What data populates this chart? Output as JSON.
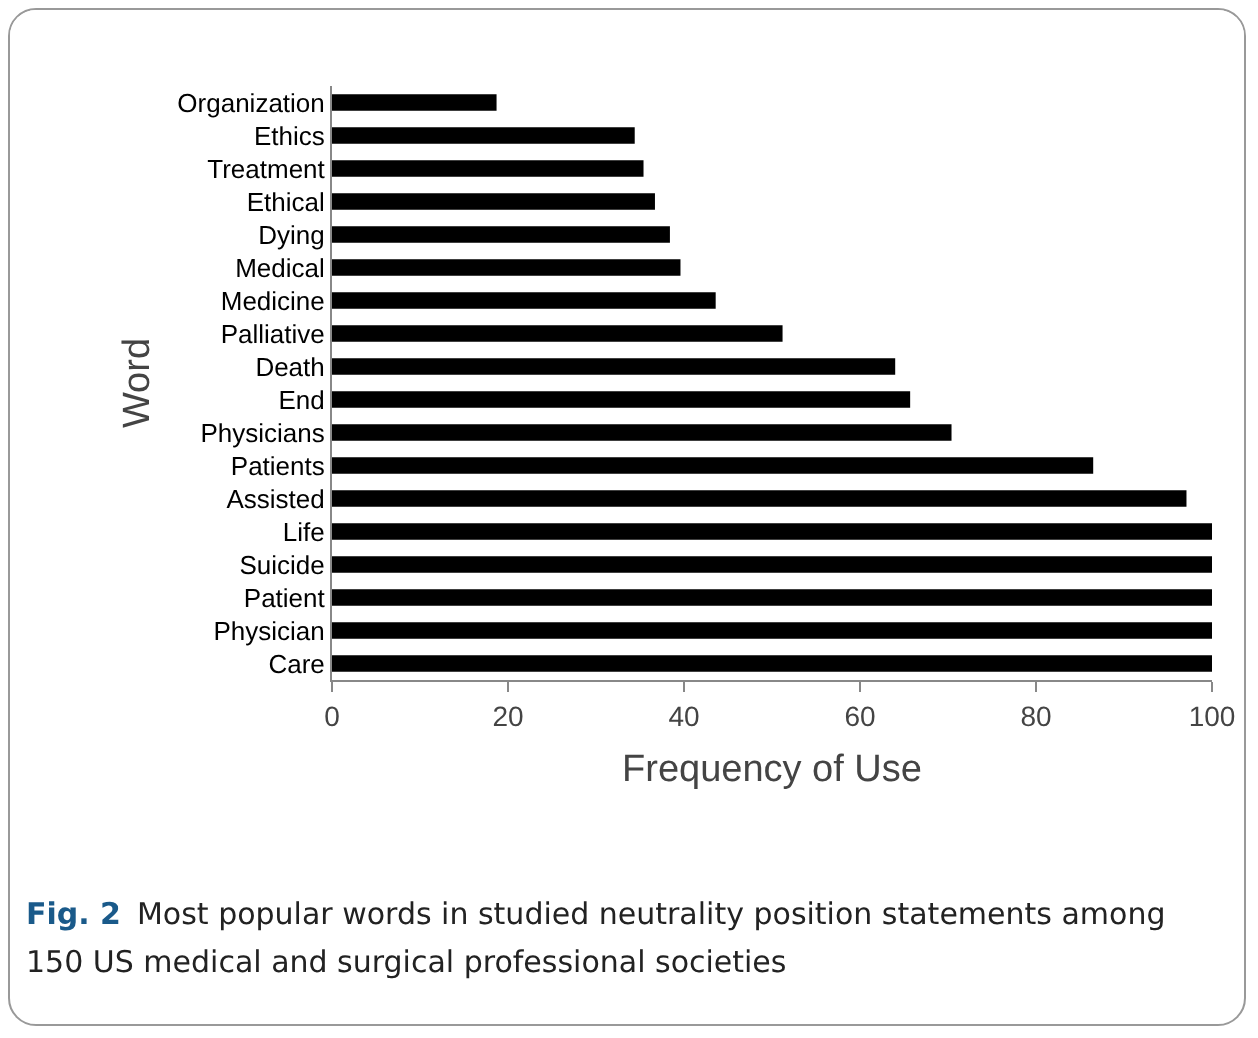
{
  "chart_data": {
    "type": "bar",
    "orientation": "horizontal",
    "categories": [
      "Organization",
      "Ethics",
      "Treatment",
      "Ethical",
      "Dying",
      "Medical",
      "Medicine",
      "Palliative",
      "Death",
      "End",
      "Physicians",
      "Patients",
      "Assisted",
      "Life",
      "Suicide",
      "Patient",
      "Physician",
      "Care"
    ],
    "values": [
      18.7,
      34.4,
      35.4,
      36.7,
      38.4,
      39.6,
      43.6,
      51.2,
      64.0,
      65.7,
      70.4,
      86.5,
      97.1,
      100,
      100,
      100,
      100,
      100
    ],
    "color": "#000000",
    "xlim": [
      0,
      100
    ],
    "xticks": [
      0,
      20,
      40,
      60,
      80,
      100
    ],
    "xlabel": "Frequency of Use",
    "ylabel": "Word",
    "grid": false,
    "legend": false,
    "annotations": [
      "Fig. 2",
      "Most popular words in studied neutrality position statements among 150 US medical and surgical professional societies"
    ]
  }
}
